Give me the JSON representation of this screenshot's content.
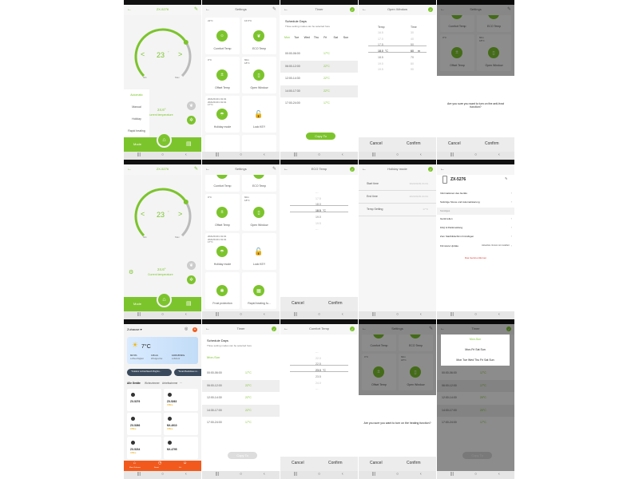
{
  "colors": {
    "accent": "#7cc42c",
    "home_accent": "#f25a1d",
    "danger": "#e0302a",
    "dim": "rgba(0,0,0,0.45)"
  },
  "common": {
    "cancel": "Cancel",
    "confirm": "Confirm",
    "copy_to": "Copy To",
    "min": "Min",
    "max": "Max",
    "back_icon": "arrow-left-icon",
    "nav": [
      "|||",
      "○",
      "‹"
    ]
  },
  "screens": [
    {
      "type": "thermostat",
      "title": "ZX-5276",
      "setpoint": "23",
      "unit": "°C",
      "current": "24.6°",
      "current_label": "Current temperature",
      "mode_label": "Mode",
      "mode_menu": [
        "Automatic",
        "Manual",
        "Holiday",
        "Rapid heating"
      ],
      "mode_selected": 0
    },
    {
      "type": "settings",
      "title": "Settings",
      "scrolled": false,
      "cards": [
        {
          "value": "22°C",
          "label": "Comfort Temp",
          "icon": "sun-icon"
        },
        {
          "value": "16.5°C",
          "label": "ECO Temp",
          "icon": "leaf-icon"
        },
        {
          "value": "0°C",
          "label": "Offset Temp",
          "icon": "plus-minus-icon"
        },
        {
          "value": "60m\n18°C",
          "label": "Open Window",
          "icon": "window-icon"
        },
        {
          "value": "2021/01/01 01:01\n2021/01/01 01:01\n17°C",
          "label": "Holiday mode",
          "icon": "holiday-icon"
        },
        {
          "value": "",
          "label": "Lock KEY",
          "icon": "lock-icon"
        },
        {
          "value": "",
          "label": "",
          "icon": ""
        },
        {
          "value": "",
          "label": "",
          "icon": ""
        }
      ]
    },
    {
      "type": "timer",
      "title": "Timer",
      "heading": "Schedule Days",
      "subheading": "Three setting modes can be selected here",
      "days": [
        "Mon",
        "Tue",
        "Wed",
        "Thu",
        "Fri",
        "Sat",
        "Sun"
      ],
      "rows": [
        {
          "time": "00:00-06:00",
          "temp": "17°C"
        },
        {
          "time": "06:00-12:00",
          "temp": "22°C"
        },
        {
          "time": "12:00-14:30",
          "temp": "22°C"
        },
        {
          "time": "14:00-17:30",
          "temp": "22°C"
        },
        {
          "time": "17:00-24:00",
          "temp": "17°C"
        }
      ],
      "copy_active": true
    },
    {
      "type": "picker",
      "title": "Open Window",
      "columns": [
        {
          "header": "Temp",
          "values": [
            "16.5",
            "17.0",
            "17.5",
            "18.0",
            "18.5",
            "19.0",
            "19.5"
          ],
          "unit": "°C"
        },
        {
          "header": "Time",
          "values": [
            "30",
            "40",
            "50",
            "60",
            "70",
            "80",
            "90"
          ],
          "unit": "m"
        }
      ],
      "selected": 3
    },
    {
      "type": "dialog",
      "title": "Settings",
      "message": "Are you sure you want to turn on the anti-frost function?",
      "cards": [
        {
          "value": "",
          "label": "Comfort Temp",
          "icon": "sun-icon"
        },
        {
          "value": "",
          "label": "ECO Temp",
          "icon": "leaf-icon"
        },
        {
          "value": "0°C",
          "label": "Offset Temp",
          "icon": "plus-minus-icon"
        },
        {
          "value": "60m\n18°C",
          "label": "Open Window",
          "icon": "window-icon"
        }
      ]
    },
    {
      "type": "thermostat",
      "title": "ZX-5276",
      "setpoint": "23",
      "unit": "°C",
      "current": "24.6°",
      "current_label": "Current temperature",
      "mode_label": "Mode",
      "show_gear": true
    },
    {
      "type": "settings",
      "title": "Settings",
      "scrolled": true,
      "cards": [
        {
          "value": "",
          "label": "Comfort Temp",
          "icon": "sun-icon"
        },
        {
          "value": "",
          "label": "ECO Temp",
          "icon": "leaf-icon"
        },
        {
          "value": "0°C",
          "label": "Offset Temp",
          "icon": "plus-minus-icon"
        },
        {
          "value": "60m\n18°C",
          "label": "Open Window",
          "icon": "window-icon"
        },
        {
          "value": "2021/01/01 01:01\n2021/01/01 01:01\n17°C",
          "label": "Holiday mode",
          "icon": "holiday-icon"
        },
        {
          "value": "",
          "label": "Lock KEY",
          "icon": "lock-icon"
        },
        {
          "value": "",
          "label": "Frost protection",
          "icon": "snowflake-icon"
        },
        {
          "value": "",
          "label": "Rapid heating fu...",
          "icon": "heating-icon"
        }
      ]
    },
    {
      "type": "picker",
      "title": "ECO Temp",
      "columns": [
        {
          "header": "",
          "values": [
            "---",
            "17.5",
            "18.0",
            "18.5",
            "19.0",
            "19.5",
            "---"
          ],
          "unit": "°C"
        }
      ],
      "selected": 3
    },
    {
      "type": "holiday",
      "title": "Holiday mode",
      "rows": [
        {
          "label": "Start time",
          "value": "2021/01/01 01:01"
        },
        {
          "label": "End time",
          "value": "2021/01/01 01:01"
        },
        {
          "label": "Temp Setting",
          "value": "17°C"
        }
      ]
    },
    {
      "type": "device",
      "title": "ZX-5276",
      "items": [
        {
          "label": "Informationen des Geräts"
        },
        {
          "label": "Sofortige Szene und Automatisierung"
        },
        {
          "section": "Sonstiges"
        },
        {
          "label": "Gerät teilen"
        },
        {
          "label": "FAQ & Rückmeldung"
        },
        {
          "label": "Zum Startbildschirm hinzufügen"
        },
        {
          "label": "Firmware Update",
          "value": "Aktuellste Version ist installiert"
        }
      ],
      "remove": "Das Gerät entfernen"
    },
    {
      "type": "home",
      "home": "Zuhause ▾",
      "weather": {
        "temp": "7°C",
        "stats": [
          {
            "value": "66.5%",
            "label": "Luftfeuchtigkeit"
          },
          {
            "value": "3.8m/s",
            "label": "Windgeschw."
          },
          {
            "value": "1006.86hPa",
            "label": "Luftdruck"
          }
        ]
      },
      "scenes": [
        "\"Outdoor Lichtschlauch Brightn...",
        "\"Smart Backdose mi..."
      ],
      "tabs": [
        "Alle Geräte",
        "Wohnzimmer",
        "Arbeitszimme",
        "···"
      ],
      "devices": [
        {
          "name": "ZX-5276",
          "status": ""
        },
        {
          "name": "ZX-5263",
          "status": "Offline"
        },
        {
          "name": "ZX-5266",
          "status": "Offline"
        },
        {
          "name": "NX-4910",
          "status": "Offline"
        },
        {
          "name": "ZX-5234",
          "status": "Offline"
        },
        {
          "name": "NX-4795",
          "status": ""
        }
      ],
      "bottom": [
        "Mein Zuhause",
        "Smart",
        "Ich"
      ]
    },
    {
      "type": "timer",
      "title": "Timer",
      "heading": "Schedule Days",
      "subheading": "Three setting modes can be selected here",
      "mode": "Mon-Sun",
      "rows": [
        {
          "time": "00:00-06:00",
          "temp": "17°C"
        },
        {
          "time": "06:00-12:00",
          "temp": "22°C"
        },
        {
          "time": "12:00-14:30",
          "temp": "22°C"
        },
        {
          "time": "14:30-17:00",
          "temp": "22°C"
        },
        {
          "time": "17:00-24:00",
          "temp": "17°C"
        }
      ],
      "copy_active": false
    },
    {
      "type": "picker",
      "title": "Comfort Temp",
      "columns": [
        {
          "header": "",
          "values": [
            "---",
            "22.0",
            "22.5",
            "23.0",
            "23.5",
            "24.0",
            "---"
          ],
          "unit": "°C"
        }
      ],
      "selected": 3
    },
    {
      "type": "dialog",
      "title": "Settings",
      "message": "Are you sure you want to turn on the heating function?",
      "cards": [
        {
          "value": "",
          "label": "Comfort Temp",
          "icon": "sun-icon"
        },
        {
          "value": "",
          "label": "ECO Temp",
          "icon": "leaf-icon"
        },
        {
          "value": "0°C",
          "label": "Offset Temp",
          "icon": "plus-minus-icon"
        },
        {
          "value": "60m\n18°C",
          "label": "Open Window",
          "icon": "window-icon"
        }
      ]
    },
    {
      "type": "timerpopup",
      "title": "Timer",
      "options": [
        "Mon-Sun",
        "Mon-Fri Sat Sun",
        "Mon Tue Wed Thu Fri Sat Sun"
      ],
      "selected": 0,
      "rows": [
        {
          "time": "00:00-06:00",
          "temp": "17°C"
        },
        {
          "time": "06:00-12:00",
          "temp": "17°C"
        },
        {
          "time": "12:00-14:00",
          "temp": "20°C"
        },
        {
          "time": "14:00-17:00",
          "temp": "20°C"
        },
        {
          "time": "17:00-24:00",
          "temp": "17°C"
        }
      ]
    }
  ]
}
